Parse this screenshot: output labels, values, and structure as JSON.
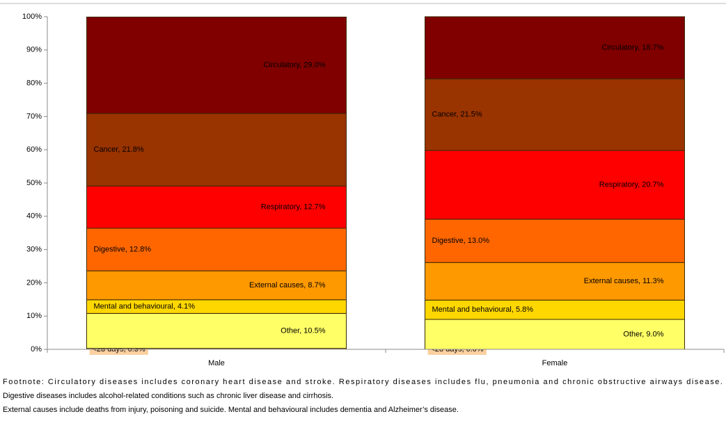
{
  "chart_data": {
    "type": "stacked_bar",
    "categories": [
      "Male",
      "Female"
    ],
    "series": [
      {
        "name": "<28 days",
        "color": "#fbd0a0",
        "label_color": "#000000",
        "values": [
          0.3,
          0.0
        ],
        "value_labels": [
          "<28 days, 0.3%",
          "<28 days, 0.0%"
        ]
      },
      {
        "name": "Other",
        "color": "#ffff66",
        "label_color": "#000000",
        "values": [
          10.5,
          9.0
        ],
        "value_labels": [
          "Other, 10.5%",
          "Other, 9.0%"
        ]
      },
      {
        "name": "Mental and behavioural",
        "color": "#ffd700",
        "label_color": "#000000",
        "values": [
          4.1,
          5.8
        ],
        "value_labels": [
          "Mental and behavioural, 4.1%",
          "Mental and behavioural, 5.8%"
        ]
      },
      {
        "name": "External causes",
        "color": "#ff9900",
        "label_color": "#000000",
        "values": [
          8.7,
          11.3
        ],
        "value_labels": [
          "External causes, 8.7%",
          "External causes, 11.3%"
        ]
      },
      {
        "name": "Digestive",
        "color": "#ff6600",
        "label_color": "#ffffff",
        "values": [
          12.8,
          13.0
        ],
        "value_labels": [
          "Digestive, 12.8%",
          "Digestive, 13.0%"
        ]
      },
      {
        "name": "Respiratory",
        "color": "#ff0000",
        "label_color": "#ffffff",
        "values": [
          12.7,
          20.7
        ],
        "value_labels": [
          "Respiratory, 12.7%",
          "Respiratory, 20.7%"
        ]
      },
      {
        "name": "Cancer",
        "color": "#993300",
        "label_color": "#ffffff",
        "values": [
          21.8,
          21.5
        ],
        "value_labels": [
          "Cancer, 21.8%",
          "Cancer, 21.5%"
        ]
      },
      {
        "name": "Circulatory",
        "color": "#800000",
        "label_color": "#ffffff",
        "values": [
          29.0,
          18.7
        ],
        "value_labels": [
          "Circulatory, 29.0%",
          "Circulatory, 18.7%"
        ]
      }
    ],
    "ylim": [
      0,
      100
    ],
    "yticks": [
      {
        "value": 0,
        "label": "0%"
      },
      {
        "value": 10,
        "label": "10%"
      },
      {
        "value": 20,
        "label": "20%"
      },
      {
        "value": 30,
        "label": "30%"
      },
      {
        "value": 40,
        "label": "40%"
      },
      {
        "value": 50,
        "label": "50%"
      },
      {
        "value": 60,
        "label": "60%"
      },
      {
        "value": 70,
        "label": "70%"
      },
      {
        "value": 80,
        "label": "80%"
      },
      {
        "value": 90,
        "label": "90%"
      },
      {
        "value": 100,
        "label": "100%"
      }
    ],
    "footnote": [
      "Footnote: Circulatory diseases includes coronary heart disease and stroke. Respiratory diseases includes flu, pneumonia and chronic obstructive airways disease.",
      "Digestive diseases includes alcohol-related conditions such as chronic liver disease and cirrhosis.",
      "External causes include deaths from injury, poisoning and suicide. Mental and behavioural includes dementia and Alzheimer’s disease."
    ]
  }
}
